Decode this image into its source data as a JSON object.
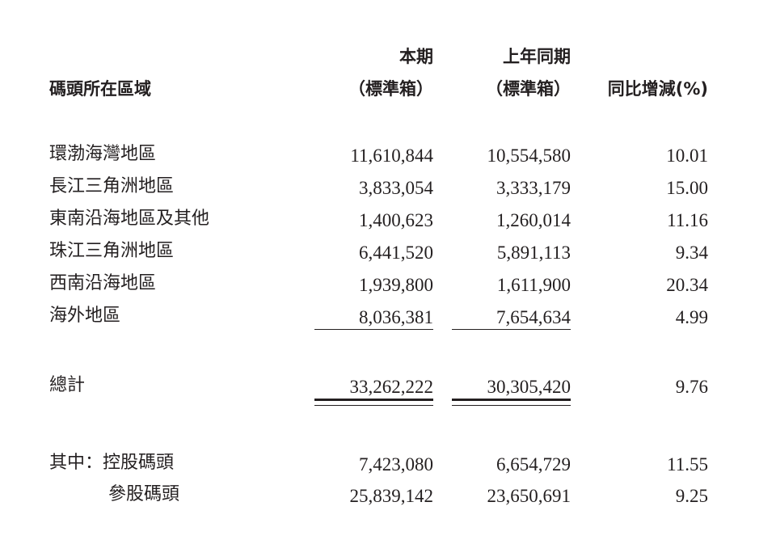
{
  "table": {
    "headers": {
      "region": "碼頭所在區域",
      "current_line1": "本期",
      "current_line2": "（標準箱）",
      "prior_line1": "上年同期",
      "prior_line2": "（標準箱）",
      "change": "同比增減(%)"
    },
    "rows": [
      {
        "region": "環渤海灣地區",
        "current": "11,610,844",
        "prior": "10,554,580",
        "change": "10.01"
      },
      {
        "region": "長江三角洲地區",
        "current": "3,833,054",
        "prior": "3,333,179",
        "change": "15.00"
      },
      {
        "region": "東南沿海地區及其他",
        "current": "1,400,623",
        "prior": "1,260,014",
        "change": "11.16"
      },
      {
        "region": "珠江三角洲地區",
        "current": "6,441,520",
        "prior": "5,891,113",
        "change": "9.34"
      },
      {
        "region": "西南沿海地區",
        "current": "1,939,800",
        "prior": "1,611,900",
        "change": "20.34"
      },
      {
        "region": "海外地區",
        "current": "8,036,381",
        "prior": "7,654,634",
        "change": "4.99"
      }
    ],
    "total": {
      "label": "總計",
      "current": "33,262,222",
      "prior": "30,305,420",
      "change": "9.76"
    },
    "breakdown": [
      {
        "label": "其中：控股碼頭",
        "current": "7,423,080",
        "prior": "6,654,729",
        "change": "11.55"
      },
      {
        "label": "參股碼頭",
        "current": "25,839,142",
        "prior": "23,650,691",
        "change": "9.25"
      }
    ]
  }
}
